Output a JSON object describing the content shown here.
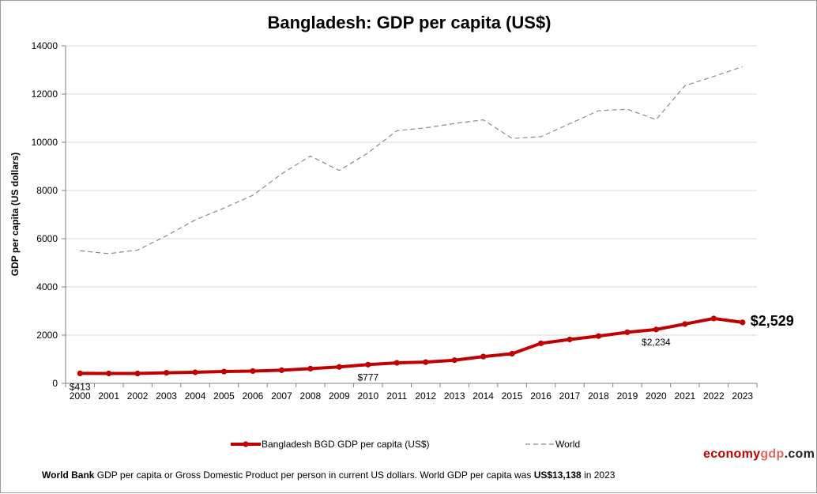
{
  "chart_data": {
    "type": "line",
    "title": "Bangladesh: GDP per capita (US$)",
    "ylabel": "GDP per capita (US dollars)",
    "xlabel": "",
    "ylim": [
      0,
      14000
    ],
    "yticks": [
      0,
      2000,
      4000,
      6000,
      8000,
      10000,
      12000,
      14000
    ],
    "grid": true,
    "legend_position": "bottom",
    "categories": [
      "2000",
      "2001",
      "2002",
      "2003",
      "2004",
      "2005",
      "2006",
      "2007",
      "2008",
      "2009",
      "2010",
      "2011",
      "2012",
      "2013",
      "2014",
      "2015",
      "2016",
      "2017",
      "2018",
      "2019",
      "2020",
      "2021",
      "2022",
      "2023"
    ],
    "series": [
      {
        "name": "Bangladesh BGD GDP per capita (US$)",
        "color": "#c00000",
        "style": "solid-markers",
        "values": [
          413,
          410,
          409,
          440,
          460,
          490,
          510,
          545,
          610,
          680,
          777,
          850,
          880,
          960,
          1110,
          1230,
          1660,
          1820,
          1960,
          2120,
          2234,
          2460,
          2690,
          2529
        ]
      },
      {
        "name": "World",
        "color": "#8a8a8a",
        "style": "dashed",
        "values": [
          5500,
          5380,
          5530,
          6120,
          6780,
          7270,
          7800,
          8690,
          9430,
          8830,
          9560,
          10480,
          10600,
          10780,
          10930,
          10160,
          10230,
          10770,
          11310,
          11370,
          10940,
          12350,
          12730,
          13138
        ]
      }
    ],
    "annotations": [
      {
        "series": 0,
        "index": 0,
        "text": "$413",
        "style": "small"
      },
      {
        "series": 0,
        "index": 10,
        "text": "$777",
        "style": "small"
      },
      {
        "series": 0,
        "index": 20,
        "text": "$2,234",
        "style": "small"
      },
      {
        "series": 0,
        "index": 23,
        "text": "$2,529",
        "style": "large"
      }
    ]
  },
  "brand": {
    "part1": "economy",
    "part2": "gdp",
    "part3": ".com",
    "color1": "#c00000",
    "color2": "#e06666",
    "color3": "#222222"
  },
  "footnote": {
    "lead": "World Bank",
    "text1": " GDP per capita or Gross Domestic Product per person  in current US dollars.   World GDP per capita was ",
    "value": "US$13,138",
    "text2": "  in 2023"
  }
}
